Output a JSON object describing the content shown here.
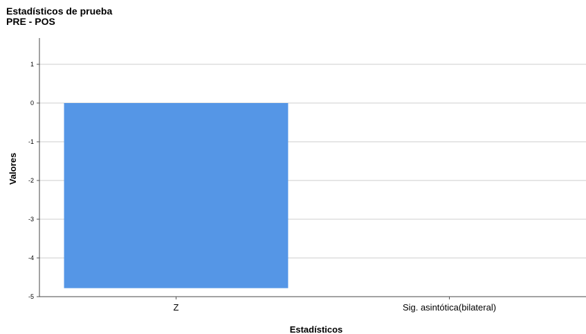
{
  "chart_data": {
    "type": "bar",
    "title": "Estadísticos de prueba",
    "subtitle": "PRE - POS",
    "xlabel": "Estadísticos",
    "ylabel": "Valores",
    "categories": [
      "Z",
      "Sig. asintótica(bilateral)"
    ],
    "values": [
      -4.78,
      0.0
    ],
    "ylim": [
      -5,
      1
    ],
    "yticks": [
      "1",
      "0",
      "-1",
      "-2",
      "-3",
      "-4",
      "-5"
    ],
    "grid": true,
    "bar_color": "#5596e6",
    "grid_color": "#cccccc"
  }
}
